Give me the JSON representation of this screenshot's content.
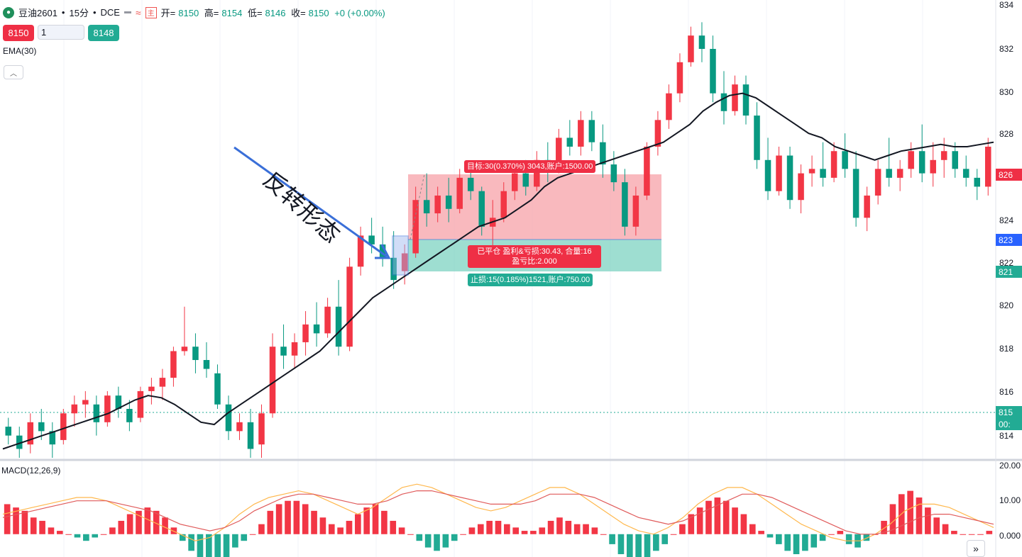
{
  "header": {
    "symbol": "豆油2601",
    "interval": "15分",
    "exchange": "DCE",
    "separator": "•",
    "logo_icon": "droplet-icon",
    "ohlc": {
      "open_label": "开=",
      "open": "8150",
      "high_label": "高=",
      "high": "8154",
      "low_label": "低=",
      "low": "8146",
      "close_label": "收=",
      "close": "8150",
      "change": "+0 (+0.00%)"
    },
    "flag_glyph": "主"
  },
  "order_panel": {
    "sell_price": "8150",
    "quantity": "1",
    "buy_price": "8148"
  },
  "indicators": {
    "ema_label": "EMA(30)",
    "macd_label": "MACD(12,26,9)"
  },
  "annotation": {
    "text": "反转形态",
    "arrow_color": "#3a6fd8"
  },
  "position_tool": {
    "target_label": "目标:30(0.370%) 3043,账户:1500.00",
    "closed_label_line1": "已平仓 盈利&亏损:30.43, 合量:16",
    "closed_label_line2": "盈亏比:2.000",
    "stop_label": "止损:15(0.185%)1521,账户:750.00",
    "entry": 8232,
    "target": 8262,
    "stop": 8217
  },
  "price_axis": {
    "ticks": [
      "834",
      "832",
      "830",
      "828",
      "826",
      "824",
      "823",
      "822",
      "821",
      "820",
      "818",
      "816",
      "815",
      "814"
    ],
    "badges": [
      {
        "label": "826",
        "color": "#ef2f45"
      },
      {
        "label": "823",
        "color": "#2962ff"
      },
      {
        "label": "821",
        "color": "#22ab94"
      },
      {
        "label": "815",
        "color": "#22ab94"
      },
      {
        "label": "00:",
        "color": "#22ab94"
      }
    ]
  },
  "macd_axis": {
    "ticks": [
      "20.00",
      "10.00",
      "0.000"
    ]
  },
  "colors": {
    "up": "#089981",
    "down": "#f23645",
    "ema": "#131722",
    "macd_line": "#ffb84d",
    "signal_line": "#e05b5b"
  },
  "chart_data": [
    {
      "type": "candlestick",
      "series_name": "豆油2601",
      "title": "",
      "ylim": [
        8140,
        8346
      ],
      "x": "bar index (15-minute bars, left to right)",
      "ohlc": [
        [
          8154,
          8158,
          8146,
          8150
        ],
        [
          8150,
          8154,
          8140,
          8144
        ],
        [
          8146,
          8160,
          8142,
          8156
        ],
        [
          8156,
          8162,
          8148,
          8152
        ],
        [
          8152,
          8156,
          8140,
          8146
        ],
        [
          8148,
          8162,
          8146,
          8160
        ],
        [
          8160,
          8168,
          8154,
          8164
        ],
        [
          8164,
          8170,
          8158,
          8166
        ],
        [
          8164,
          8168,
          8150,
          8156
        ],
        [
          8156,
          8170,
          8154,
          8168
        ],
        [
          8168,
          8172,
          8158,
          8162
        ],
        [
          8162,
          8166,
          8152,
          8156
        ],
        [
          8158,
          8172,
          8156,
          8170
        ],
        [
          8170,
          8176,
          8164,
          8172
        ],
        [
          8172,
          8180,
          8166,
          8176
        ],
        [
          8176,
          8190,
          8172,
          8188
        ],
        [
          8188,
          8208,
          8186,
          8190
        ],
        [
          8190,
          8196,
          8178,
          8184
        ],
        [
          8184,
          8192,
          8176,
          8180
        ],
        [
          8178,
          8182,
          8162,
          8164
        ],
        [
          8164,
          8168,
          8148,
          8152
        ],
        [
          8152,
          8160,
          8148,
          8156
        ],
        [
          8156,
          8162,
          8140,
          8144
        ],
        [
          8146,
          8164,
          8140,
          8160
        ],
        [
          8160,
          8196,
          8158,
          8190
        ],
        [
          8190,
          8200,
          8180,
          8186
        ],
        [
          8186,
          8196,
          8180,
          8192
        ],
        [
          8192,
          8206,
          8186,
          8200
        ],
        [
          8200,
          8210,
          8190,
          8196
        ],
        [
          8196,
          8212,
          8194,
          8208
        ],
        [
          8208,
          8220,
          8186,
          8190
        ],
        [
          8190,
          8230,
          8188,
          8226
        ],
        [
          8226,
          8244,
          8222,
          8240
        ],
        [
          8240,
          8248,
          8232,
          8236
        ],
        [
          8236,
          8244,
          8226,
          8230
        ],
        [
          8230,
          8242,
          8216,
          8220
        ],
        [
          8224,
          8236,
          8218,
          8232
        ],
        [
          8232,
          8262,
          8230,
          8256
        ],
        [
          8256,
          8268,
          8244,
          8250
        ],
        [
          8250,
          8262,
          8246,
          8258
        ],
        [
          8258,
          8266,
          8246,
          8252
        ],
        [
          8252,
          8270,
          8250,
          8266
        ],
        [
          8266,
          8272,
          8256,
          8260
        ],
        [
          8260,
          8262,
          8240,
          8244
        ],
        [
          8244,
          8256,
          8232,
          8248
        ],
        [
          8248,
          8264,
          8246,
          8260
        ],
        [
          8260,
          8272,
          8256,
          8268
        ],
        [
          8268,
          8274,
          8258,
          8262
        ],
        [
          8262,
          8278,
          8260,
          8274
        ],
        [
          8274,
          8282,
          8264,
          8270
        ],
        [
          8270,
          8288,
          8268,
          8284
        ],
        [
          8284,
          8292,
          8276,
          8280
        ],
        [
          8280,
          8296,
          8276,
          8292
        ],
        [
          8292,
          8296,
          8278,
          8282
        ],
        [
          8282,
          8290,
          8266,
          8272
        ],
        [
          8272,
          8278,
          8260,
          8264
        ],
        [
          8264,
          8270,
          8240,
          8244
        ],
        [
          8244,
          8262,
          8240,
          8258
        ],
        [
          8258,
          8282,
          8256,
          8280
        ],
        [
          8280,
          8296,
          8276,
          8292
        ],
        [
          8292,
          8308,
          8288,
          8304
        ],
        [
          8304,
          8322,
          8300,
          8318
        ],
        [
          8318,
          8334,
          8316,
          8330
        ],
        [
          8330,
          8336,
          8318,
          8324
        ],
        [
          8324,
          8330,
          8300,
          8304
        ],
        [
          8304,
          8314,
          8290,
          8296
        ],
        [
          8296,
          8312,
          8294,
          8308
        ],
        [
          8308,
          8312,
          8290,
          8294
        ],
        [
          8294,
          8300,
          8270,
          8274
        ],
        [
          8274,
          8284,
          8256,
          8260
        ],
        [
          8260,
          8280,
          8258,
          8276
        ],
        [
          8276,
          8280,
          8252,
          8256
        ],
        [
          8256,
          8272,
          8250,
          8268
        ],
        [
          8268,
          8276,
          8262,
          8270
        ],
        [
          8270,
          8282,
          8262,
          8266
        ],
        [
          8266,
          8282,
          8264,
          8278
        ],
        [
          8278,
          8286,
          8266,
          8270
        ],
        [
          8270,
          8278,
          8244,
          8248
        ],
        [
          8248,
          8262,
          8242,
          8258
        ],
        [
          8258,
          8274,
          8254,
          8270
        ],
        [
          8270,
          8284,
          8262,
          8266
        ],
        [
          8266,
          8274,
          8260,
          8270
        ],
        [
          8270,
          8282,
          8266,
          8278
        ],
        [
          8278,
          8290,
          8264,
          8268
        ],
        [
          8268,
          8282,
          8262,
          8274
        ],
        [
          8274,
          8284,
          8266,
          8278
        ],
        [
          8278,
          8282,
          8266,
          8270
        ],
        [
          8270,
          8276,
          8262,
          8266
        ],
        [
          8266,
          8270,
          8256,
          8262
        ],
        [
          8262,
          8284,
          8258,
          8280
        ]
      ],
      "ema30": [
        8144,
        8146,
        8148,
        8150,
        8152,
        8154,
        8156,
        8158,
        8160,
        8163,
        8166,
        8168,
        8167,
        8164,
        8160,
        8156,
        8155,
        8160,
        8164,
        8168,
        8172,
        8176,
        8180,
        8184,
        8188,
        8194,
        8200,
        8206,
        8212,
        8216,
        8220,
        8224,
        8228,
        8232,
        8236,
        8240,
        8244,
        8246,
        8248,
        8252,
        8256,
        8262,
        8266,
        8268,
        8270,
        8272,
        8274,
        8276,
        8278,
        8280,
        8282,
        8286,
        8290,
        8296,
        8300,
        8303,
        8304,
        8302,
        8298,
        8294,
        8290,
        8286,
        8284,
        8280,
        8278,
        8276,
        8274,
        8276,
        8278,
        8279,
        8280,
        8281,
        8280,
        8280,
        8281,
        8282
      ]
    },
    {
      "type": "bar+line",
      "series_name": "MACD(12,26,9)",
      "title": "",
      "ylim": [
        -6,
        21
      ],
      "histogram": [
        9,
        8,
        7,
        5,
        4,
        2,
        1,
        0,
        -1,
        -2,
        -1,
        0,
        2,
        4,
        6,
        7,
        8,
        7,
        5,
        2,
        -2,
        -5,
        -7,
        -8,
        -8,
        -7,
        -4,
        -2,
        0,
        3,
        7,
        9,
        10,
        10,
        9,
        7,
        5,
        3,
        2,
        4,
        6,
        8,
        9,
        7,
        4,
        2,
        0,
        -2,
        -4,
        -5,
        -4,
        -2,
        0,
        2,
        3,
        4,
        4,
        3,
        2,
        1,
        1,
        2,
        4,
        5,
        4,
        3,
        3,
        2,
        0,
        -3,
        -6,
        -8,
        -8,
        -7,
        -5,
        -3,
        0,
        3,
        6,
        8,
        10,
        11,
        10,
        8,
        6,
        3,
        1,
        -1,
        -3,
        -5,
        -6,
        -5,
        -4,
        -2,
        0,
        1,
        -3,
        -4,
        -2,
        0,
        4,
        9,
        12,
        13,
        11,
        8,
        5,
        3,
        1,
        0,
        0,
        0,
        1
      ],
      "macd_line": [
        6,
        7,
        8,
        9,
        10,
        11,
        11,
        10,
        8,
        6,
        4,
        2,
        0,
        -2,
        -1,
        2,
        6,
        9,
        11,
        12,
        13,
        12,
        10,
        8,
        6,
        8,
        11,
        14,
        15,
        14,
        12,
        10,
        8,
        7,
        8,
        10,
        12,
        14,
        14,
        12,
        9,
        6,
        3,
        1,
        0,
        2,
        5,
        9,
        12,
        14,
        14,
        12,
        9,
        6,
        3,
        1,
        -1,
        -2,
        -2,
        0,
        3,
        7,
        9,
        9,
        8,
        6,
        4,
        2
      ],
      "signal_line": [
        5,
        6,
        7,
        8,
        9,
        10,
        10,
        10,
        9,
        8,
        7,
        5,
        3,
        2,
        1,
        2,
        4,
        7,
        9,
        11,
        12,
        12,
        11,
        10,
        9,
        9,
        10,
        12,
        13,
        13,
        12,
        11,
        10,
        9,
        9,
        9,
        10,
        12,
        12,
        12,
        11,
        9,
        7,
        5,
        4,
        3,
        4,
        6,
        8,
        10,
        12,
        12,
        11,
        9,
        7,
        5,
        3,
        1,
        0,
        0,
        1,
        3,
        5,
        6,
        6,
        5,
        4,
        3
      ]
    }
  ]
}
